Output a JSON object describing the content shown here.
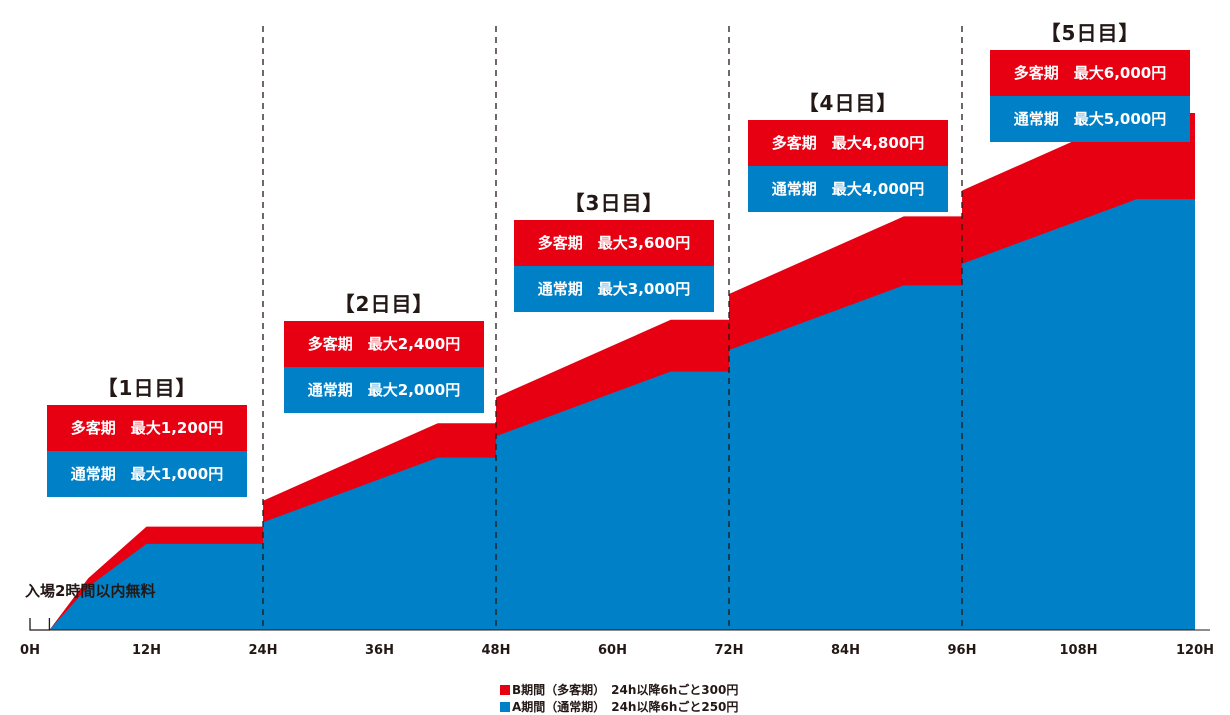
{
  "chart_data": {
    "type": "area",
    "x_label_suffix": "H",
    "x_ticks": [
      "0H",
      "12H",
      "24H",
      "36H",
      "48H",
      "60H",
      "72H",
      "84H",
      "96H",
      "108H",
      "120H"
    ],
    "xlim": [
      0,
      120
    ],
    "ylim": [
      0,
      6000
    ],
    "day_boundaries": [
      24,
      48,
      72,
      96
    ],
    "series": [
      {
        "name": "B期間（多客期）　24h以降6hごと300円",
        "color": "#e60012",
        "x": [
          0,
          2,
          6,
          12,
          24,
          24.01,
          30,
          36,
          42,
          48,
          48.01,
          54,
          60,
          66,
          72,
          72.01,
          78,
          84,
          90,
          96,
          96.01,
          102,
          108,
          114,
          120
        ],
        "y": [
          0,
          0,
          600,
          1200,
          1200,
          1500,
          1800,
          2100,
          2400,
          2400,
          2700,
          3000,
          3300,
          3600,
          3600,
          3900,
          4200,
          4500,
          4800,
          4800,
          5100,
          5400,
          5700,
          6000,
          6000
        ]
      },
      {
        "name": "A期間（通常期）　24h以降6hごと250円",
        "color": "#0080c6",
        "x": [
          0,
          2,
          6,
          12,
          24,
          24.01,
          30,
          36,
          42,
          48,
          48.01,
          54,
          60,
          66,
          72,
          72.01,
          78,
          84,
          90,
          96,
          96.01,
          102,
          108,
          114,
          120
        ],
        "y": [
          0,
          0,
          500,
          1000,
          1000,
          1250,
          1500,
          1750,
          2000,
          2000,
          2250,
          2500,
          2750,
          3000,
          3000,
          3250,
          3500,
          3750,
          4000,
          4000,
          4250,
          4500,
          4750,
          5000,
          5000
        ]
      }
    ],
    "annotations": {
      "free_label": "入場2時間以内無料",
      "days": [
        {
          "title": "【1日目】",
          "b_label": "多客期　最大1,200円",
          "a_label": "通常期　最大1,000円"
        },
        {
          "title": "【2日目】",
          "b_label": "多客期　最大2,400円",
          "a_label": "通常期　最大2,000円"
        },
        {
          "title": "【3日目】",
          "b_label": "多客期　最大3,600円",
          "a_label": "通常期　最大3,000円"
        },
        {
          "title": "【4日目】",
          "b_label": "多客期　最大4,800円",
          "a_label": "通常期　最大4,000円"
        },
        {
          "title": "【5日目】",
          "b_label": "多客期　最大6,000円",
          "a_label": "通常期　最大5,000円"
        }
      ]
    },
    "legend": {
      "b": "B期間（多客期）　24h以降6hごと300円",
      "a": "A期間（通常期）　24h以降6hごと250円"
    }
  }
}
